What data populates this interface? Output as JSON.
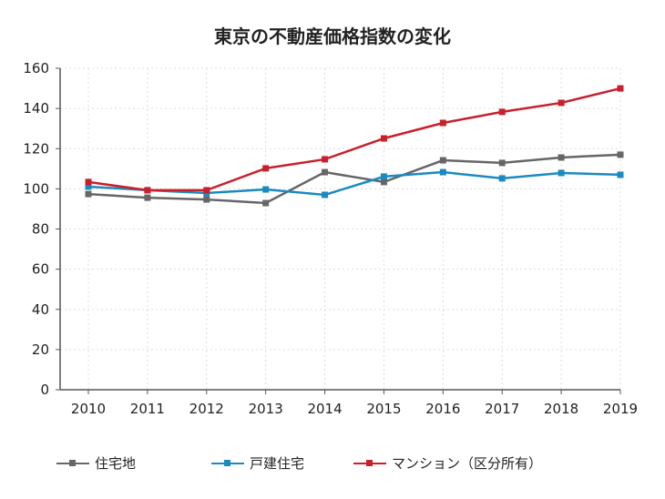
{
  "chart_data": {
    "type": "line",
    "title": "東京の不動産価格指数の変化",
    "xlabel": "",
    "ylabel": "",
    "categories": [
      "2010",
      "2011",
      "2012",
      "2013",
      "2014",
      "2015",
      "2016",
      "2017",
      "2018",
      "2019"
    ],
    "ylim": [
      0,
      160
    ],
    "yticks": [
      0,
      20,
      40,
      60,
      80,
      100,
      120,
      140,
      160
    ],
    "grid": true,
    "legend_position": "bottom",
    "series": [
      {
        "name": "住宅地",
        "color": "#666666",
        "values": [
          97.4,
          95.6,
          94.7,
          92.9,
          108.3,
          103.4,
          114.2,
          112.9,
          115.6,
          117.0
        ]
      },
      {
        "name": "戸建住宅",
        "color": "#1a8ac0",
        "values": [
          101.1,
          99.3,
          97.9,
          99.7,
          97.0,
          106.1,
          108.3,
          105.2,
          107.9,
          107.0
        ]
      },
      {
        "name": "マンション（区分所有）",
        "color": "#c8202c",
        "values": [
          103.4,
          99.3,
          99.3,
          110.2,
          114.7,
          125.1,
          132.8,
          138.3,
          142.8,
          150.0
        ]
      }
    ]
  }
}
